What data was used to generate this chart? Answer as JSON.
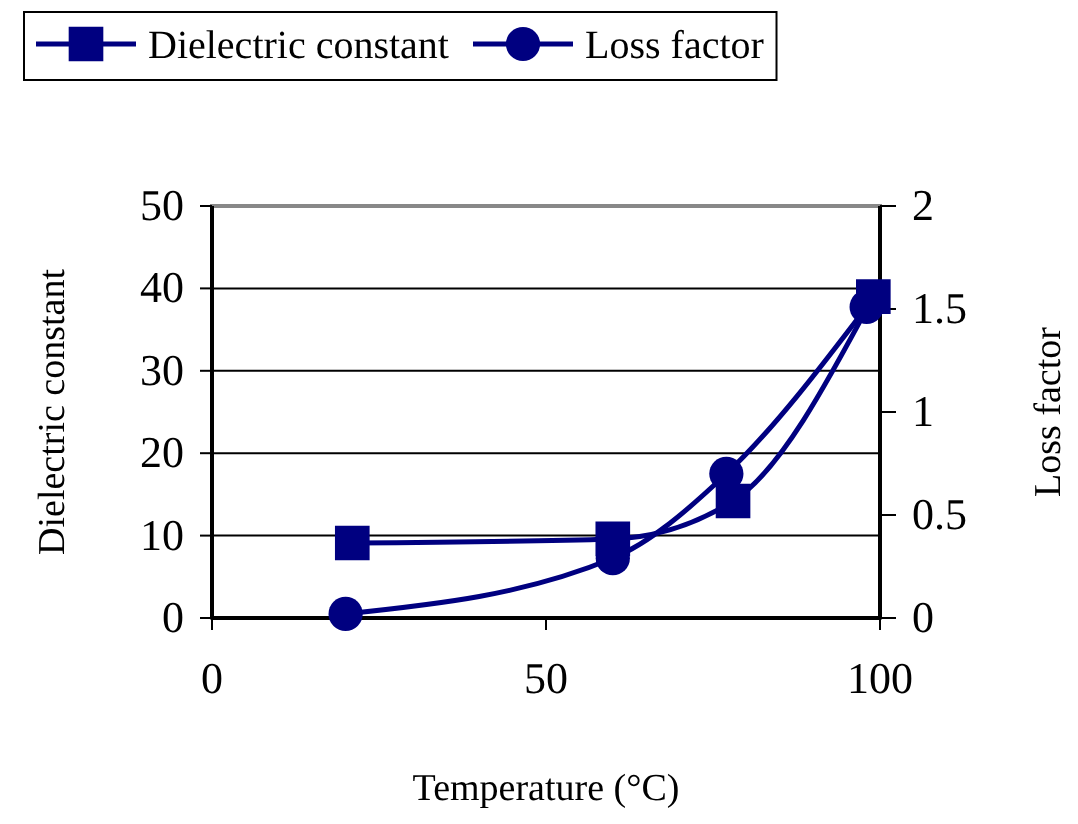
{
  "chart_data": {
    "type": "line",
    "xlabel": "Temperature (°C)",
    "ylabel": "Dielectric constant",
    "y2label": "Loss factor",
    "xlim": [
      0,
      100
    ],
    "xticks": [
      0,
      50,
      100
    ],
    "ylim": [
      0,
      50
    ],
    "yticks": [
      0,
      10,
      20,
      30,
      40,
      50
    ],
    "y2lim": [
      0,
      2
    ],
    "y2ticks": [
      0,
      0.5,
      1,
      1.5,
      2
    ],
    "grid": "y",
    "legend": "top",
    "series": [
      {
        "name": "Dielectric constant",
        "color": "#000080",
        "marker": "square",
        "x": [
          21,
          60,
          78,
          99
        ],
        "values": [
          9.1,
          9.6,
          14.2,
          39
        ]
      },
      {
        "name": "Loss factor",
        "color": "#000080",
        "marker": "circle",
        "axis": "y2",
        "x": [
          20,
          60,
          77,
          98
        ],
        "values": [
          0.02,
          0.29,
          0.7,
          1.51
        ]
      }
    ]
  }
}
